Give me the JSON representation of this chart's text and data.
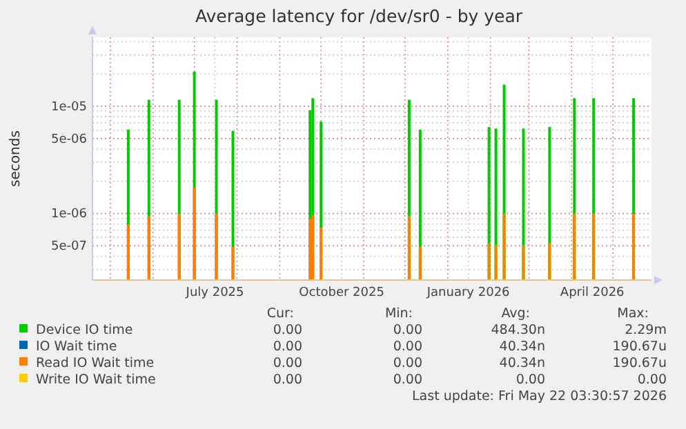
{
  "chart_data": {
    "type": "bar",
    "title": "Average latency for /dev/sr0 - by year",
    "ylabel": "seconds",
    "log": true,
    "grid": true,
    "legend": "bottom",
    "x": [
      "2025-05-14",
      "2025-05-29",
      "2025-06-20",
      "2025-07-01",
      "2025-07-17",
      "2025-07-29",
      "2025-09-23",
      "2025-09-25",
      "2025-10-01",
      "2025-12-04",
      "2025-12-12",
      "2026-01-31",
      "2026-02-05",
      "2026-02-11",
      "2026-02-25",
      "2026-03-16",
      "2026-04-03",
      "2026-04-17",
      "2026-05-16"
    ],
    "series": [
      {
        "name": "Device IO time",
        "color": "#00cc00",
        "values": [
          6.05e-06,
          1.15e-05,
          1.15e-05,
          2.1e-05,
          1.15e-05,
          5.9e-06,
          9.2e-06,
          1.19e-05,
          7.2e-06,
          1.15e-05,
          6.05e-06,
          6.4e-06,
          6.2e-06,
          1.59e-05,
          6.2e-06,
          6.4e-06,
          1.19e-05,
          1.19e-05,
          1.19e-05
        ]
      },
      {
        "name": "IO Wait time",
        "color": "#0066b3",
        "values": [
          null,
          null,
          null,
          null,
          null,
          null,
          null,
          null,
          null,
          null,
          null,
          null,
          null,
          null,
          null,
          null,
          null,
          null,
          null
        ]
      },
      {
        "name": "Read IO Wait time",
        "color": "#ff8000",
        "values": [
          7.9e-07,
          9.5e-07,
          9.9e-07,
          1.75e-06,
          1e-06,
          4.9e-07,
          9e-07,
          9.7e-07,
          7.4e-07,
          9.5e-07,
          4.9e-07,
          5.3e-07,
          5.1e-07,
          1e-06,
          5.1e-07,
          5.3e-07,
          1e-06,
          1e-06,
          1e-06
        ]
      },
      {
        "name": "Write IO Wait time",
        "color": "#ffcc00",
        "values": [
          null,
          null,
          null,
          null,
          null,
          null,
          null,
          null,
          null,
          null,
          null,
          null,
          null,
          null,
          null,
          null,
          null,
          null,
          null
        ]
      }
    ],
    "xlim": [
      "2025-04-18",
      "2026-05-29"
    ],
    "xticks": [
      {
        "value": "2025-05-01",
        "label": null
      },
      {
        "value": "2025-06-01",
        "label": null
      },
      {
        "value": "2025-07-01",
        "label": null
      },
      {
        "value": "2025-07-16",
        "label": "July 2025"
      },
      {
        "value": "2025-08-01",
        "label": null
      },
      {
        "value": "2025-09-01",
        "label": null
      },
      {
        "value": "2025-10-01",
        "label": null
      },
      {
        "value": "2025-10-16",
        "label": "October 2025"
      },
      {
        "value": "2025-11-01",
        "label": null
      },
      {
        "value": "2025-12-01",
        "label": null
      },
      {
        "value": "2026-01-01",
        "label": null
      },
      {
        "value": "2026-01-16",
        "label": "January 2026"
      },
      {
        "value": "2026-02-01",
        "label": null
      },
      {
        "value": "2026-03-01",
        "label": null
      },
      {
        "value": "2026-04-01",
        "label": null
      },
      {
        "value": "2026-04-16",
        "label": "April 2026"
      },
      {
        "value": "2026-05-01",
        "label": null
      }
    ],
    "ylim": [
      2.4e-07,
      4.4e-05
    ],
    "yticks": [
      {
        "value": 3e-07,
        "label": null
      },
      {
        "value": 4e-07,
        "label": null
      },
      {
        "value": 5e-07,
        "label": "5e-07"
      },
      {
        "value": 6e-07,
        "label": null
      },
      {
        "value": 7e-07,
        "label": null
      },
      {
        "value": 8e-07,
        "label": null
      },
      {
        "value": 9e-07,
        "label": null
      },
      {
        "value": 1e-06,
        "label": "1e-06"
      },
      {
        "value": 2e-06,
        "label": null
      },
      {
        "value": 3e-06,
        "label": null
      },
      {
        "value": 4e-06,
        "label": null
      },
      {
        "value": 5e-06,
        "label": "5e-06"
      },
      {
        "value": 6e-06,
        "label": null
      },
      {
        "value": 7e-06,
        "label": null
      },
      {
        "value": 8e-06,
        "label": null
      },
      {
        "value": 9e-06,
        "label": null
      },
      {
        "value": 1e-05,
        "label": "1e-05"
      },
      {
        "value": 2e-05,
        "label": null
      },
      {
        "value": 3e-05,
        "label": null
      },
      {
        "value": 4e-05,
        "label": null
      }
    ],
    "annotations": [
      "Cur:",
      "Min:",
      "Avg:",
      "Max:",
      "0.00",
      "0.00",
      "484.30n",
      "2.29m",
      "0.00",
      "0.00",
      "40.34n",
      "190.67u",
      "0.00",
      "0.00",
      "40.34n",
      "190.67u",
      "0.00",
      "0.00",
      "0.00",
      "0.00",
      "Last update: Fri May 22 03:30:57 2026"
    ]
  }
}
